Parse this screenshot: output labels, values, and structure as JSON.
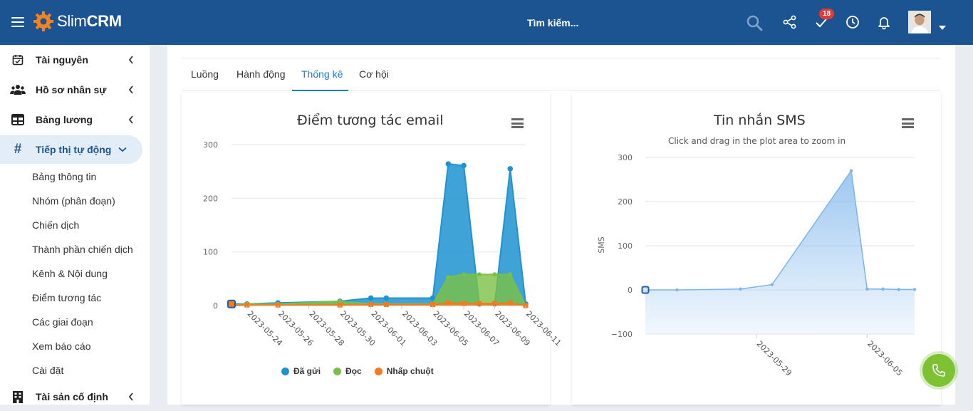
{
  "app": {
    "logo_text_light": "Slim",
    "logo_text_bold": "CRM"
  },
  "search": {
    "placeholder": "Tìm kiếm..."
  },
  "header": {
    "notification_count": "18"
  },
  "sidebar": {
    "items": [
      {
        "label": "Tài nguyên",
        "icon": "calendar-check-icon"
      },
      {
        "label": "Hồ sơ nhân sự",
        "icon": "users-icon"
      },
      {
        "label": "Bảng lương",
        "icon": "table-icon"
      },
      {
        "label": "Tiếp thị tự động",
        "icon": "hashtag-icon",
        "active": true
      },
      {
        "label": "Tài sản cố định",
        "icon": "building-icon"
      }
    ],
    "subitems": [
      "Bảng thông tin",
      "Nhóm (phân đoạn)",
      "Chiến dịch",
      "Thành phần chiến dịch",
      "Kênh & Nội dung",
      "Điểm tương tác",
      "Các giai đoạn",
      "Xem báo cáo",
      "Cài đặt"
    ]
  },
  "tabs": [
    {
      "label": "Luồng"
    },
    {
      "label": "Hành động"
    },
    {
      "label": "Thống kê",
      "active": true
    },
    {
      "label": "Cơ hội"
    }
  ],
  "chart_data": [
    {
      "type": "area",
      "title": "Điểm tương tác email",
      "x": [
        "2023-05-23",
        "2023-05-24",
        "2023-05-26",
        "2023-05-30",
        "2023-06-01",
        "2023-06-02",
        "2023-06-05",
        "2023-06-06",
        "2023-06-07",
        "2023-06-08",
        "2023-06-09",
        "2023-06-10",
        "2023-06-11"
      ],
      "x_tick_labels": [
        "2023-05-24",
        "2023-05-26",
        "2023-05-28",
        "2023-05-30",
        "2023-06-01",
        "2023-06-03",
        "2023-06-05",
        "2023-06-07",
        "2023-06-09",
        "2023-06-11"
      ],
      "y_ticks": [
        "0",
        "100",
        "200",
        "300"
      ],
      "ylim": [
        0,
        300
      ],
      "series": [
        {
          "name": "Đã gửi",
          "color": "#1f93d1",
          "values": [
            3,
            3,
            5,
            8,
            14,
            14,
            14,
            264,
            261,
            3,
            3,
            255,
            3
          ]
        },
        {
          "name": "Đọc",
          "color": "#7ac143",
          "values": [
            0,
            3,
            3,
            8,
            3,
            3,
            3,
            53,
            58,
            58,
            58,
            58,
            0
          ]
        },
        {
          "name": "Nhấp chuột",
          "color": "#f47a20",
          "values": [
            0,
            1,
            1,
            1,
            2,
            2,
            2,
            5,
            4,
            4,
            4,
            5,
            0
          ]
        }
      ],
      "legend": "bottom-center"
    },
    {
      "type": "area",
      "title": "Tin nhắn SMS",
      "subtitle": "Click and drag in the plot area to zoom in",
      "ylabel": "SMS",
      "x": [
        "2023-05-22",
        "2023-05-24",
        "2023-05-28",
        "2023-05-30",
        "2023-06-04",
        "2023-06-05",
        "2023-06-06",
        "2023-06-07",
        "2023-06-08"
      ],
      "x_tick_labels": [
        "2023-05-29",
        "2023-06-05"
      ],
      "y_ticks": [
        "300",
        "200",
        "100",
        "0",
        "−100"
      ],
      "ylim": [
        -100,
        300
      ],
      "series": [
        {
          "name": "SMS",
          "color": "#7cb5ec",
          "values": [
            0,
            0,
            2,
            12,
            270,
            2,
            2,
            1,
            1
          ]
        }
      ]
    }
  ]
}
